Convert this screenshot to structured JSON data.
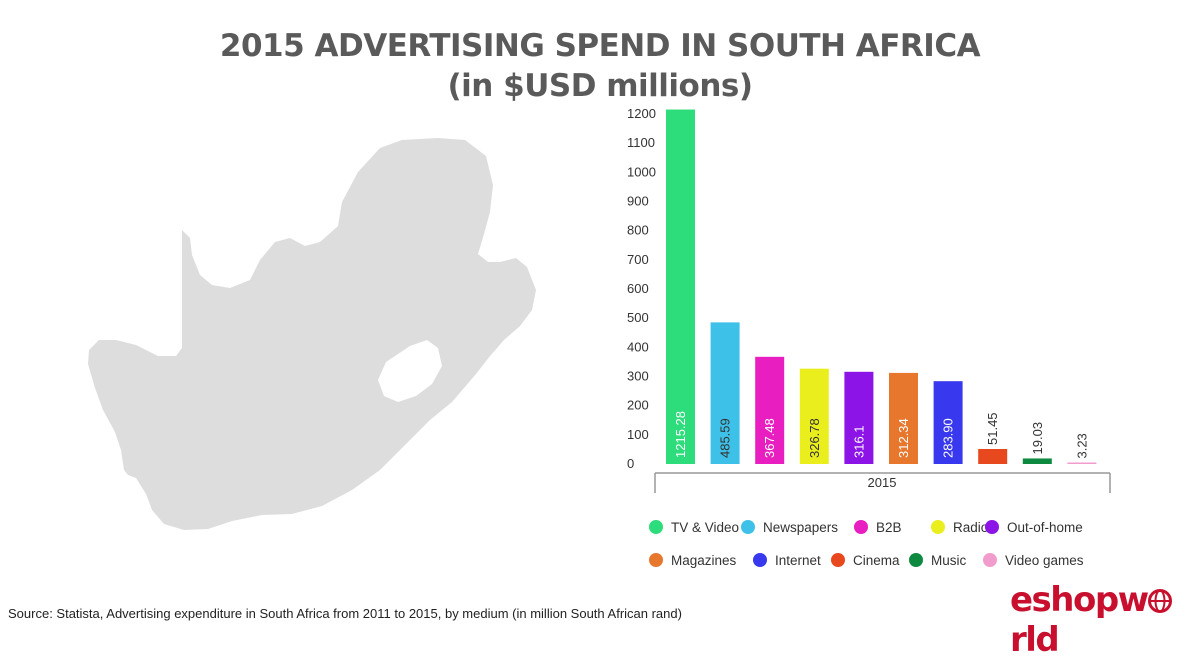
{
  "title_line1": "2015 ADVERTISING SPEND IN SOUTH AFRICA",
  "title_line2": "(in $USD millions)",
  "source": "Source: Statista, Advertising expenditure in South Africa from 2011 to 2015, by medium (in million South African rand)",
  "logo": {
    "text_pre": "eshopw",
    "text_post": "rld"
  },
  "chart_data": {
    "type": "bar",
    "title": "2015 ADVERTISING SPEND IN SOUTH AFRICA",
    "subtitle": "(in $USD millions)",
    "categories": [
      "2015"
    ],
    "ylim": [
      0,
      1200
    ],
    "yticks": [
      0,
      100,
      200,
      300,
      400,
      500,
      600,
      700,
      800,
      900,
      1000,
      1100,
      1200
    ],
    "grid": false,
    "legend_position": "bottom",
    "series": [
      {
        "name": "TV & Video",
        "value": 1215.28,
        "label": "1215.28",
        "color": "#2ddc7a"
      },
      {
        "name": "Newspapers",
        "value": 485.59,
        "label": "485.59",
        "color": "#3ec1e8"
      },
      {
        "name": "B2B",
        "value": 367.48,
        "label": "367.48",
        "color": "#e81ec0"
      },
      {
        "name": "Radio",
        "value": 326.78,
        "label": "326.78",
        "color": "#eaee1d"
      },
      {
        "name": "Out-of-home",
        "value": 316.1,
        "label": "316.1",
        "color": "#8c14e6"
      },
      {
        "name": "Magazines",
        "value": 312.34,
        "label": "312.34",
        "color": "#e8772e"
      },
      {
        "name": "Internet",
        "value": 283.9,
        "label": "283.90",
        "color": "#3838ee"
      },
      {
        "name": "Cinema",
        "value": 51.45,
        "label": "51.45",
        "color": "#e8481e"
      },
      {
        "name": "Music",
        "value": 19.03,
        "label": "19.03",
        "color": "#0d8a3f"
      },
      {
        "name": "Video games",
        "value": 3.23,
        "label": "3.23",
        "color": "#f29ccd"
      }
    ]
  }
}
